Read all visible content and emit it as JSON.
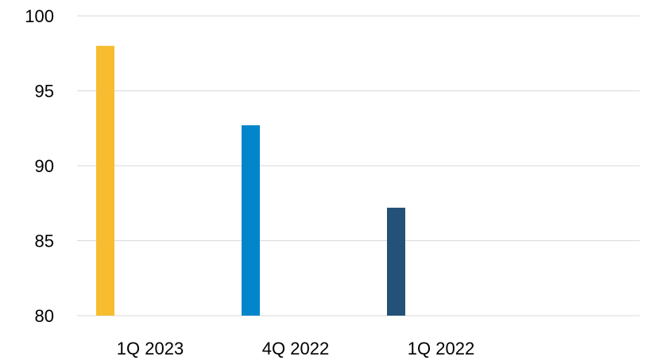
{
  "chart_data": {
    "type": "bar",
    "title": "",
    "xlabel": "",
    "ylabel": "",
    "ylim": [
      80,
      100
    ],
    "yticks": [
      80,
      85,
      90,
      95,
      100
    ],
    "grid": true,
    "legend": "none",
    "categories": [
      "1Q 2023",
      "4Q 2022",
      "1Q 2022"
    ],
    "values": [
      98.0,
      92.7,
      87.2
    ],
    "bar_colors": [
      "#F7BC30",
      "#0285CA",
      "#245177"
    ],
    "gridline_color": "#D9D9D9"
  }
}
